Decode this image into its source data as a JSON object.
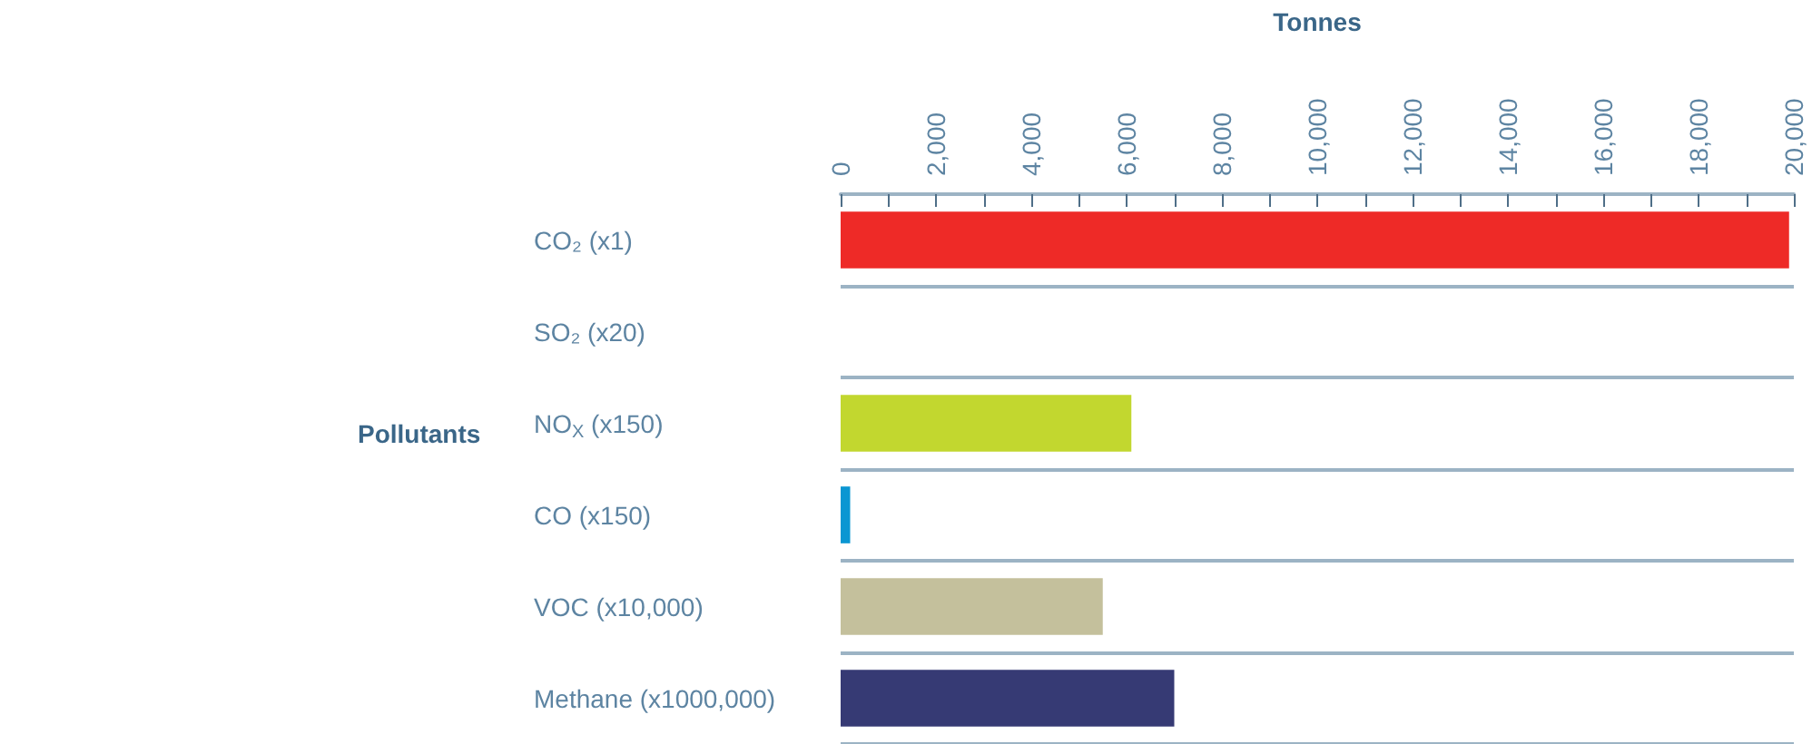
{
  "chart_data": {
    "type": "bar",
    "orientation": "horizontal",
    "xlabel": "Tonnes",
    "ylabel": "Pollutants",
    "categories": [
      "CO₂ (x1)",
      "SO₂ (x20)",
      "NO$_{X}$ (x150)",
      "CO (x150)",
      "VOC (x10,000)",
      "Methane (x1000,000)"
    ],
    "values": [
      19900,
      null,
      6100,
      200,
      5500,
      7000
    ],
    "colors": [
      "#ee2a27",
      null,
      "#c2d72f",
      "#0a96d2",
      "#c4c09c",
      "#363a74"
    ],
    "xlim": [
      0,
      20000
    ],
    "xticks": [
      {
        "value": 0,
        "label": "0"
      },
      {
        "value": 1000,
        "label": null
      },
      {
        "value": 2000,
        "label": "2,000"
      },
      {
        "value": 3000,
        "label": null
      },
      {
        "value": 4000,
        "label": "4,000"
      },
      {
        "value": 5000,
        "label": null
      },
      {
        "value": 6000,
        "label": "6,000"
      },
      {
        "value": 7000,
        "label": null
      },
      {
        "value": 8000,
        "label": "8,000"
      },
      {
        "value": 9000,
        "label": null
      },
      {
        "value": 10000,
        "label": "10,000"
      },
      {
        "value": 11000,
        "label": null
      },
      {
        "value": 12000,
        "label": "12,000"
      },
      {
        "value": 13000,
        "label": null
      },
      {
        "value": 14000,
        "label": "14,000"
      },
      {
        "value": 15000,
        "label": null
      },
      {
        "value": 16000,
        "label": "16,000"
      },
      {
        "value": 17000,
        "label": null
      },
      {
        "value": 18000,
        "label": "18,000"
      },
      {
        "value": 19000,
        "label": null
      },
      {
        "value": 20000,
        "label": "20,000"
      }
    ],
    "grid": "y"
  }
}
